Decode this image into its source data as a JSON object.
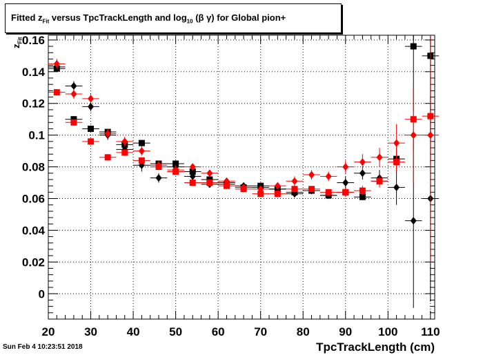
{
  "title": {
    "main": "Fitted  z",
    "sub": "Fit",
    "mid": " versus TpcTrackLength and log",
    "sub2": "10",
    "end": " (β γ) for Global pion+"
  },
  "footer_date": "Sun Feb  4 10:23:51 2018",
  "chart_data": {
    "type": "scatter",
    "title": "Fitted  zFit versus TpcTrackLength and log10 (β γ) for Global pion+",
    "xlabel": "TpcTrackLength (cm)",
    "ylabel": "z Fit",
    "xlim": [
      20,
      111
    ],
    "ylim": [
      -0.016,
      0.163
    ],
    "x_ticks": [
      20,
      30,
      40,
      50,
      60,
      70,
      80,
      90,
      100,
      110
    ],
    "y_ticks": [
      0,
      0.02,
      0.04,
      0.06,
      0.08,
      0.1,
      0.12,
      0.14,
      0.16
    ],
    "y_tick_labels": [
      "0",
      "0.02",
      "0.04",
      "0.06",
      "0.08",
      "0.1",
      "0.12",
      "0.14",
      "0.16"
    ],
    "grid": true,
    "series": [
      {
        "marker": "square",
        "color": "#000000",
        "x": [
          22,
          26,
          30,
          34,
          38,
          42,
          46,
          50,
          54,
          58,
          62,
          66,
          70,
          74,
          78,
          82,
          86,
          90,
          94,
          98,
          102,
          106,
          110
        ],
        "y": [
          0.142,
          0.11,
          0.104,
          0.102,
          0.094,
          0.095,
          0.082,
          0.082,
          0.077,
          0.072,
          0.069,
          0.067,
          0.068,
          0.066,
          0.064,
          0.065,
          0.062,
          0.064,
          0.061,
          0.071,
          0.085,
          0.156,
          0.15
        ],
        "yerr": [
          0.002,
          0.002,
          0.002,
          0.002,
          0.002,
          0.002,
          0.002,
          0.002,
          0.002,
          0.002,
          0.002,
          0.002,
          0.002,
          0.002,
          0.002,
          0.002,
          0.002,
          0.002,
          0.002,
          0.003,
          0.008,
          0.04,
          0.05
        ]
      },
      {
        "marker": "diamond",
        "color": "#000000",
        "x": [
          22,
          26,
          30,
          34,
          38,
          42,
          46,
          50,
          54,
          58,
          62,
          66,
          70,
          74,
          78,
          82,
          86,
          90,
          94,
          98,
          102,
          106,
          110
        ],
        "y": [
          0.143,
          0.131,
          0.118,
          0.1,
          0.091,
          0.081,
          0.073,
          0.08,
          0.074,
          0.069,
          0.07,
          0.068,
          0.067,
          0.066,
          0.063,
          0.065,
          0.062,
          0.07,
          0.076,
          0.073,
          0.067,
          0.046,
          0.06
        ],
        "yerr": [
          0.003,
          0.003,
          0.003,
          0.003,
          0.003,
          0.004,
          0.003,
          0.003,
          0.002,
          0.002,
          0.002,
          0.002,
          0.002,
          0.002,
          0.002,
          0.002,
          0.002,
          0.004,
          0.004,
          0.005,
          0.011,
          0.055,
          0.065
        ]
      },
      {
        "marker": "square",
        "color": "#ff0000",
        "x": [
          22,
          26,
          30,
          34,
          38,
          42,
          46,
          50,
          54,
          58,
          62,
          66,
          70,
          74,
          78,
          82,
          86,
          90,
          94,
          98,
          102,
          106,
          110
        ],
        "y": [
          0.127,
          0.108,
          0.096,
          0.086,
          0.089,
          0.084,
          0.08,
          0.077,
          0.07,
          0.07,
          0.068,
          0.066,
          0.063,
          0.063,
          0.066,
          0.066,
          0.064,
          0.064,
          0.065,
          0.071,
          0.083,
          0.11,
          0.112
        ],
        "yerr": [
          0.002,
          0.002,
          0.002,
          0.002,
          0.002,
          0.002,
          0.002,
          0.002,
          0.002,
          0.002,
          0.002,
          0.002,
          0.002,
          0.002,
          0.002,
          0.002,
          0.002,
          0.003,
          0.003,
          0.004,
          0.006,
          0.02,
          0.03
        ]
      },
      {
        "marker": "diamond",
        "color": "#ff0000",
        "x": [
          22,
          26,
          30,
          34,
          38,
          42,
          46,
          50,
          54,
          58,
          62,
          66,
          70,
          74,
          78,
          82,
          86,
          90,
          94,
          98,
          102,
          106,
          110
        ],
        "y": [
          0.145,
          0.126,
          0.123,
          0.101,
          0.096,
          0.09,
          0.081,
          0.078,
          0.08,
          0.076,
          0.071,
          0.067,
          0.066,
          0.068,
          0.071,
          0.075,
          0.074,
          0.08,
          0.083,
          0.086,
          0.095,
          0.1,
          0.1
        ],
        "yerr": [
          0.003,
          0.003,
          0.003,
          0.003,
          0.003,
          0.003,
          0.003,
          0.003,
          0.002,
          0.002,
          0.002,
          0.002,
          0.002,
          0.002,
          0.003,
          0.003,
          0.003,
          0.004,
          0.005,
          0.006,
          0.012,
          0.03,
          0.08
        ]
      }
    ]
  }
}
